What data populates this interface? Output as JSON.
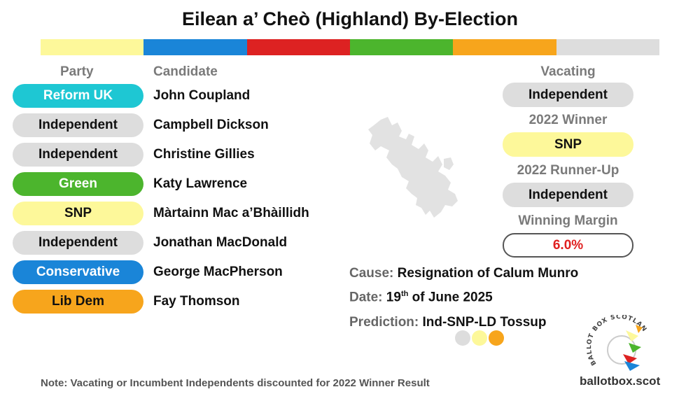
{
  "title": "Eilean a’ Cheò (Highland) By-Election",
  "colorbar": [
    "#fdf89a",
    "#1a85d8",
    "#dd2222",
    "#4cb52d",
    "#f7a51c",
    "#dddddd"
  ],
  "headers": {
    "party": "Party",
    "candidate": "Candidate",
    "vacating": "Vacating"
  },
  "candidates": [
    {
      "party": "Reform UK",
      "name": "John Coupland",
      "bg": "#1ec7d3",
      "fg": "#ffffff"
    },
    {
      "party": "Independent",
      "name": "Campbell Dickson",
      "bg": "#dddddd",
      "fg": "#111111"
    },
    {
      "party": "Independent",
      "name": "Christine Gillies",
      "bg": "#dddddd",
      "fg": "#111111"
    },
    {
      "party": "Green",
      "name": "Katy Lawrence",
      "bg": "#4cb52d",
      "fg": "#ffffff"
    },
    {
      "party": "SNP",
      "name": "Màrtainn Mac a’Bhàillidh",
      "bg": "#fdf89a",
      "fg": "#111111"
    },
    {
      "party": "Independent",
      "name": "Jonathan MacDonald",
      "bg": "#dddddd",
      "fg": "#111111"
    },
    {
      "party": "Conservative",
      "name": "George MacPherson",
      "bg": "#1a85d8",
      "fg": "#ffffff"
    },
    {
      "party": "Lib Dem",
      "name": "Fay Thomson",
      "bg": "#f7a51c",
      "fg": "#111111"
    }
  ],
  "right": {
    "vacating": "Independent",
    "winner_label": "2022 Winner",
    "winner": "SNP",
    "runnerup_label": "2022 Runner-Up",
    "runnerup": "Independent",
    "margin_label": "Winning Margin",
    "margin": "6.0%"
  },
  "info": {
    "cause_label": "Cause:",
    "cause": "Resignation of Calum Munro",
    "date_label": "Date:",
    "date_day": "19",
    "date_suffix": "th",
    "date_rest": "of June 2025",
    "prediction_label": "Prediction:",
    "prediction": "Ind-SNP-LD Tossup"
  },
  "prediction_dots": [
    "#dddddd",
    "#fdf89a",
    "#f7a51c"
  ],
  "note": "Note: Vacating  or Incumbent Independents discounted for 2022 Winner Result",
  "site": "ballotbox.scot",
  "logo_text": "BALLOT BOX SCOTLAND",
  "icons": {
    "map": "skye-map-icon",
    "logo": "ballot-box-scotland-logo"
  }
}
